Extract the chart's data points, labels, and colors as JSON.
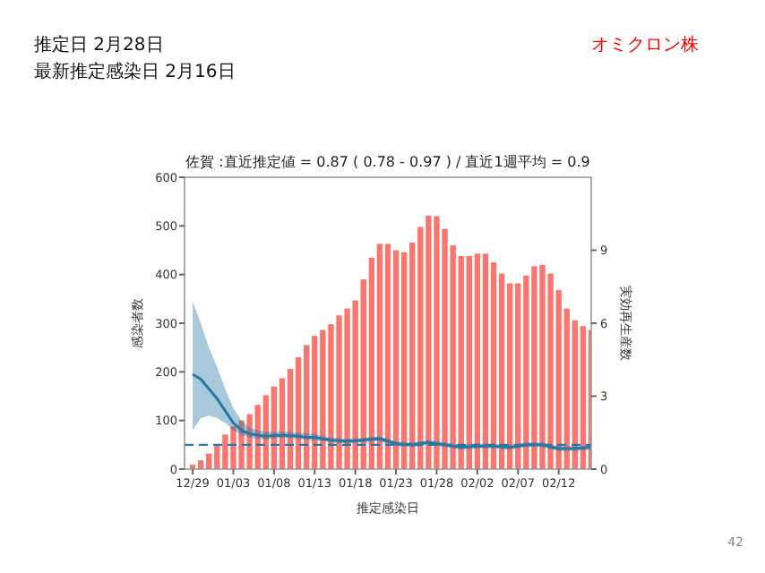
{
  "chart_data": {
    "type": "bar",
    "title": "佐賀 :直近推定値 = 0.87 ( 0.78 - 0.97 ) / 直近1週平均 = 0.9",
    "xlabel": "推定感染日",
    "ylabel": "感染者数",
    "y2label": "実効再生産数",
    "annotations": [
      "推定日  2月28日",
      "最新推定感染日  2月16日",
      "オミクロン株",
      "42"
    ],
    "categories": [
      "12/29",
      null,
      null,
      null,
      null,
      "01/03",
      null,
      null,
      null,
      null,
      "01/08",
      null,
      null,
      null,
      null,
      "01/13",
      null,
      null,
      null,
      null,
      "01/18",
      null,
      null,
      null,
      null,
      "01/23",
      null,
      null,
      null,
      null,
      "01/28",
      null,
      null,
      null,
      null,
      "02/02",
      null,
      null,
      null,
      null,
      "02/07",
      null,
      null,
      null,
      null,
      "02/12",
      null,
      null,
      null,
      null
    ],
    "series": [
      {
        "color": "#f8766d",
        "values": [
          9,
          18,
          32,
          50,
          71,
          88,
          100,
          113,
          132,
          152,
          170,
          187,
          206,
          230,
          255,
          274,
          286,
          298,
          316,
          330,
          347,
          390,
          435,
          463,
          463,
          450,
          446,
          466,
          498,
          521,
          520,
          494,
          460,
          438,
          438,
          443,
          443,
          425,
          402,
          382,
          382,
          398,
          417,
          420,
          402,
          368,
          330,
          306,
          294,
          286
        ]
      },
      {
        "type": "line",
        "axis": "y2",
        "color": "#2378a6",
        "values": [
          3.9,
          3.7,
          3.3,
          2.9,
          2.4,
          1.9,
          1.6,
          1.45,
          1.4,
          1.35,
          1.38,
          1.4,
          1.38,
          1.35,
          1.32,
          1.3,
          1.25,
          1.2,
          1.17,
          1.15,
          1.17,
          1.2,
          1.23,
          1.25,
          1.15,
          1.05,
          1.02,
          1.0,
          1.05,
          1.1,
          1.05,
          1.0,
          0.95,
          0.9,
          0.92,
          0.95,
          0.95,
          0.95,
          0.92,
          0.9,
          0.95,
          1.0,
          1.0,
          1.0,
          0.92,
          0.85,
          0.85,
          0.85,
          0.87,
          0.9
        ],
        "lower": [
          1.6,
          2.1,
          2.2,
          2.1,
          1.9,
          1.6,
          1.4,
          1.3,
          1.25,
          1.2,
          1.26,
          1.28,
          1.26,
          1.23,
          1.2,
          1.18,
          1.15,
          1.1,
          1.07,
          1.05,
          1.07,
          1.1,
          1.13,
          1.15,
          1.05,
          0.95,
          0.92,
          0.9,
          0.95,
          1.0,
          0.95,
          0.9,
          0.85,
          0.8,
          0.82,
          0.85,
          0.85,
          0.85,
          0.82,
          0.8,
          0.85,
          0.9,
          0.9,
          0.9,
          0.82,
          0.75,
          0.75,
          0.75,
          0.77,
          0.78
        ],
        "upper": [
          6.9,
          6.0,
          5.0,
          4.2,
          3.3,
          2.5,
          2.0,
          1.7,
          1.6,
          1.55,
          1.53,
          1.55,
          1.53,
          1.5,
          1.47,
          1.45,
          1.35,
          1.3,
          1.27,
          1.25,
          1.27,
          1.3,
          1.33,
          1.35,
          1.25,
          1.15,
          1.12,
          1.1,
          1.15,
          1.2,
          1.15,
          1.1,
          1.05,
          1.0,
          1.02,
          1.05,
          1.05,
          1.05,
          1.02,
          1.0,
          1.05,
          1.1,
          1.1,
          1.1,
          1.02,
          0.95,
          0.95,
          0.95,
          0.97,
          0.97
        ]
      }
    ],
    "ref_lines": [
      {
        "axis": "y2",
        "value": 1,
        "color": "#2378a6",
        "line_style": "dashed"
      }
    ],
    "ylim": [
      0,
      600
    ],
    "yticks": [
      0,
      100,
      200,
      300,
      400,
      500,
      600
    ],
    "y2lim": [
      0,
      12
    ],
    "y2ticks": [
      0,
      3,
      6,
      9
    ],
    "grid": false
  }
}
